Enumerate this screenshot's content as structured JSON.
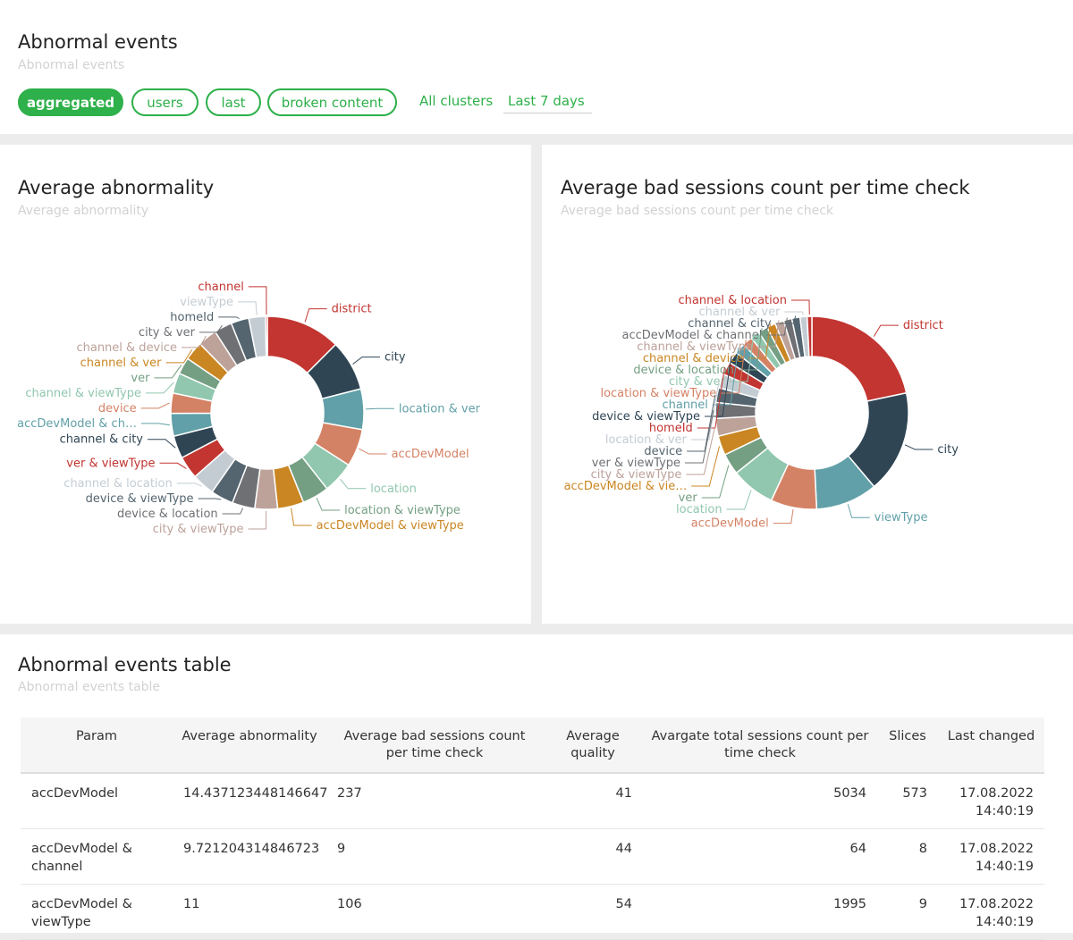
{
  "header": {
    "title": "Abnormal events",
    "subtitle": "Abnormal events",
    "chips": [
      {
        "label": "aggregated",
        "active": true
      },
      {
        "label": "users",
        "active": false
      },
      {
        "label": "last",
        "active": false
      },
      {
        "label": "broken content",
        "active": false
      }
    ],
    "cluster_filter": "All clusters",
    "period_filter": "Last 7 days"
  },
  "left_chart": {
    "title": "Average abnormality",
    "subtitle": "Average abnormality"
  },
  "right_chart": {
    "title": "Average bad sessions count per time check",
    "subtitle": "Average bad sessions count per time check"
  },
  "chart_data": [
    {
      "type": "pie",
      "donut": true,
      "title": "Average abnormality",
      "legend": "none",
      "slices": [
        {
          "label": "district",
          "percent": 12.5,
          "color": "#c23531"
        },
        {
          "label": "city",
          "percent": 8.5,
          "color": "#2f4554"
        },
        {
          "label": "location & ver",
          "percent": 6.8,
          "color": "#61a0a8"
        },
        {
          "label": "accDevModel",
          "percent": 6.3,
          "color": "#d48265"
        },
        {
          "label": "location",
          "percent": 5.3,
          "color": "#91c7ae"
        },
        {
          "label": "location & viewType",
          "percent": 4.5,
          "color": "#749f83"
        },
        {
          "label": "accDevModel & viewType",
          "percent": 4.4,
          "color": "#ca8622"
        },
        {
          "label": "city & viewType",
          "percent": 3.8,
          "color": "#bda29a"
        },
        {
          "label": "device & location",
          "percent": 3.8,
          "color": "#6e7074"
        },
        {
          "label": "device & viewType",
          "percent": 3.8,
          "color": "#546570"
        },
        {
          "label": "channel & location",
          "percent": 3.8,
          "color": "#c4ccd3"
        },
        {
          "label": "ver & viewType",
          "percent": 3.8,
          "color": "#c23531"
        },
        {
          "label": "channel & city",
          "percent": 3.8,
          "color": "#2f4554"
        },
        {
          "label": "accDevModel & ch…",
          "percent": 3.8,
          "color": "#61a0a8"
        },
        {
          "label": "device",
          "percent": 3.4,
          "color": "#d48265"
        },
        {
          "label": "channel & viewType",
          "percent": 3.4,
          "color": "#91c7ae"
        },
        {
          "label": "ver",
          "percent": 2.8,
          "color": "#749f83"
        },
        {
          "label": "channel & ver",
          "percent": 3.2,
          "color": "#ca8622"
        },
        {
          "label": "channel & device",
          "percent": 3.2,
          "color": "#bda29a"
        },
        {
          "label": "city & ver",
          "percent": 3.0,
          "color": "#6e7074"
        },
        {
          "label": "homeId",
          "percent": 3.0,
          "color": "#546570"
        },
        {
          "label": "viewType",
          "percent": 2.8,
          "color": "#c4ccd3"
        },
        {
          "label": "channel",
          "percent": 0.3,
          "color": "#c23531"
        }
      ]
    },
    {
      "type": "pie",
      "donut": true,
      "title": "Average bad sessions count per time check",
      "legend": "none",
      "slices": [
        {
          "label": "district",
          "percent": 22.0,
          "color": "#c23531"
        },
        {
          "label": "city",
          "percent": 17.4,
          "color": "#2f4554"
        },
        {
          "label": "viewType",
          "percent": 10.5,
          "color": "#61a0a8"
        },
        {
          "label": "accDevModel",
          "percent": 7.8,
          "color": "#d48265"
        },
        {
          "label": "location",
          "percent": 7.5,
          "color": "#91c7ae"
        },
        {
          "label": "ver",
          "percent": 3.6,
          "color": "#749f83"
        },
        {
          "label": "accDevModel & vie…",
          "percent": 3.3,
          "color": "#ca8622"
        },
        {
          "label": "city & viewType",
          "percent": 3.0,
          "color": "#bda29a"
        },
        {
          "label": "ver & viewType",
          "percent": 2.7,
          "color": "#6e7074"
        },
        {
          "label": "device",
          "percent": 2.5,
          "color": "#546570"
        },
        {
          "label": "location & ver",
          "percent": 2.4,
          "color": "#c4ccd3"
        },
        {
          "label": "homeId",
          "percent": 2.2,
          "color": "#c23531"
        },
        {
          "label": "device & viewType",
          "percent": 2.0,
          "color": "#2f4554"
        },
        {
          "label": "channel",
          "percent": 1.8,
          "color": "#61a0a8"
        },
        {
          "label": "location & viewType",
          "percent": 1.7,
          "color": "#d48265"
        },
        {
          "label": "city & ver",
          "percent": 1.6,
          "color": "#91c7ae"
        },
        {
          "label": "device & location",
          "percent": 1.6,
          "color": "#749f83"
        },
        {
          "label": "channel & device",
          "percent": 1.5,
          "color": "#ca8622"
        },
        {
          "label": "channel & viewType",
          "percent": 1.5,
          "color": "#bda29a"
        },
        {
          "label": "accDevModel & channel",
          "percent": 1.4,
          "color": "#6e7074"
        },
        {
          "label": "channel & city",
          "percent": 1.4,
          "color": "#546570"
        },
        {
          "label": "channel & ver",
          "percent": 1.2,
          "color": "#c4ccd3"
        },
        {
          "label": "channel & location",
          "percent": 0.8,
          "color": "#c23531"
        }
      ]
    }
  ],
  "table": {
    "title": "Abnormal events table",
    "subtitle": "Abnormal events table",
    "headers": [
      "Param",
      "Average abnormality",
      "Average bad sessions count per time check",
      "Average quality",
      "Avargate total sessions count per time check",
      "Slices",
      "Last changed"
    ],
    "rows": [
      [
        "accDevModel",
        "14.437123448146647",
        "237",
        "41",
        "5034",
        "573",
        "17.08.2022 14:40:19"
      ],
      [
        "accDevModel & channel",
        "9.721204314846723",
        "9",
        "44",
        "64",
        "8",
        "17.08.2022 14:40:19"
      ],
      [
        "accDevModel & viewType",
        "11",
        "106",
        "54",
        "1995",
        "9",
        "17.08.2022 14:40:19"
      ]
    ]
  }
}
